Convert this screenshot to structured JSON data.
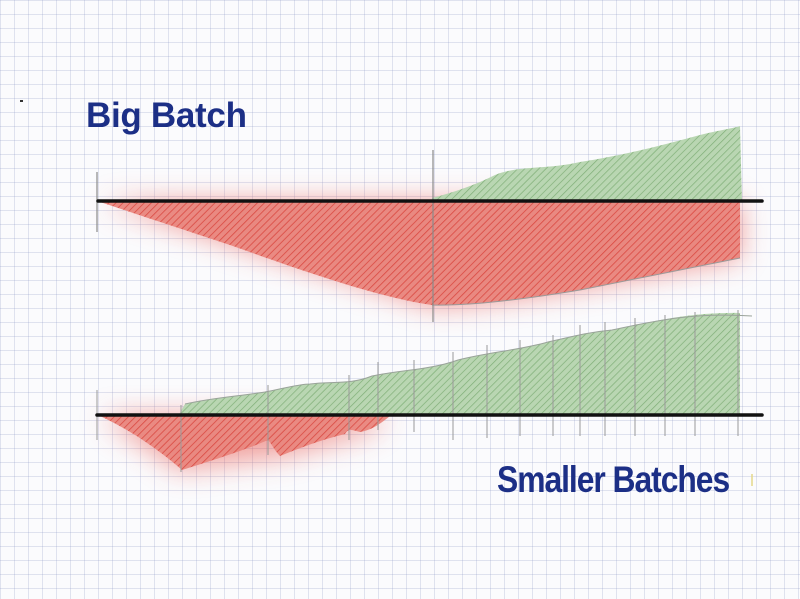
{
  "titles": {
    "big_batch": "Big Batch",
    "smaller_batches": "Smaller Batches"
  },
  "colors": {
    "title": "#1c2f86",
    "loss_area": "#e3534a",
    "gain_area": "#8fbf86",
    "baseline": "#111111",
    "grid": "#c8cde0"
  }
}
